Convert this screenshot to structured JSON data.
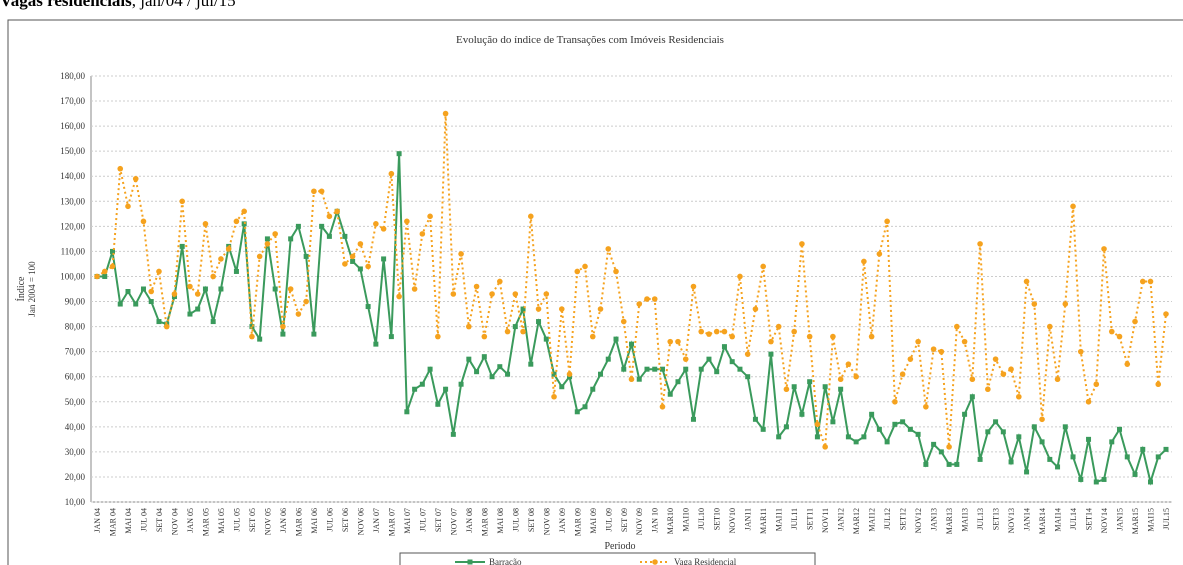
{
  "chart_data": {
    "type": "line",
    "caption_bold": "Vagas residenciais",
    "caption": ", jan/04 / jul/15",
    "title": "Evolução do índice de Transações com Imóveis Residenciais",
    "y_label": "Índice",
    "y_label_sub": "Jan 2004 = 100",
    "x_label": "Periodo",
    "categories": [
      "JAN 04",
      null,
      "MAR 04",
      null,
      "MAI 04",
      null,
      "JUL 04",
      null,
      "SET 04",
      null,
      "NOV 04",
      null,
      "JAN 05",
      null,
      "MAR 05",
      null,
      "MAI 05",
      null,
      "JUL 05",
      null,
      "SET 05",
      null,
      "NOV 05",
      null,
      "JAN 06",
      null,
      "MAR 06",
      null,
      "MAI 06",
      null,
      "JUL 06",
      null,
      "SET 06",
      null,
      "NOV 06",
      null,
      "JAN 07",
      null,
      "MAR 07",
      null,
      "MAI 07",
      null,
      "JUL 07",
      null,
      "SET 07",
      null,
      "NOV 07",
      null,
      "JAN 08",
      null,
      "MAR 08",
      null,
      "MAI 08",
      null,
      "JUL 08",
      null,
      "SET 08",
      null,
      "NOV 08",
      null,
      "JAN 09",
      null,
      "MAR 09",
      null,
      "MAI 09",
      null,
      "JUL 09",
      null,
      "SET 09",
      null,
      "NOV 09",
      null,
      "JAN 10",
      null,
      "MAR10",
      null,
      "MAI10",
      null,
      "JUL10",
      null,
      "SET10",
      null,
      "NOV10",
      null,
      "JAN11",
      null,
      "MAR11",
      null,
      "MAI11",
      null,
      "JUL11",
      null,
      "SET11",
      null,
      "NOV11",
      null,
      "JAN12",
      null,
      "MAR12",
      null,
      "MAI12",
      null,
      "JUL12",
      null,
      "SET12",
      null,
      "NOV12",
      null,
      "JAN13",
      null,
      "MAR13",
      null,
      "MAI13",
      null,
      "JUL13",
      null,
      "SET13",
      null,
      "NOV13",
      null,
      "JAN14",
      null,
      "MAR14",
      null,
      "MAI14",
      null,
      "JUL14",
      null,
      "SET14",
      null,
      "NOV14",
      null,
      "JAN15",
      null,
      "MAR15",
      null,
      "MAI15",
      null,
      "JUL15"
    ],
    "series": [
      {
        "name": "Barracão",
        "color": "#3a9a5c",
        "marker": "square",
        "dash": false,
        "values": [
          100,
          100,
          110,
          89,
          94,
          89,
          95,
          90,
          82,
          81,
          92,
          112,
          85,
          87,
          95,
          82,
          95,
          112,
          102,
          121,
          80,
          75,
          115,
          95,
          77,
          115,
          120,
          108,
          77,
          120,
          116,
          126,
          116,
          106,
          103,
          88,
          73,
          107,
          76,
          149,
          46,
          55,
          57,
          63,
          49,
          55,
          37,
          57,
          67,
          62,
          68,
          60,
          64,
          61,
          80,
          87,
          65,
          82,
          75,
          61,
          56,
          60,
          46,
          48,
          55,
          61,
          67,
          75,
          63,
          73,
          59,
          63,
          63,
          63,
          53,
          58,
          63,
          43,
          63,
          67,
          62,
          72,
          66,
          63,
          60,
          43,
          39,
          69,
          36,
          40,
          56,
          45,
          58,
          36,
          56,
          42,
          55,
          36,
          34,
          36,
          45,
          39,
          34,
          41,
          42,
          39,
          37,
          25,
          33,
          30,
          25,
          25,
          45,
          52,
          27,
          38,
          42,
          38,
          26,
          36,
          22,
          40,
          34,
          27,
          24,
          40,
          28,
          19,
          35,
          18,
          19,
          34,
          39,
          28,
          21,
          31,
          18,
          28,
          31
        ]
      },
      {
        "name": "Vaga Residencial",
        "color": "#f5a21e",
        "marker": "circle",
        "dash": true,
        "values": [
          100,
          102,
          104,
          143,
          128,
          139,
          122,
          94,
          102,
          80,
          93,
          130,
          96,
          93,
          121,
          100,
          107,
          111,
          122,
          126,
          76,
          108,
          113,
          117,
          80,
          95,
          85,
          90,
          134,
          134,
          124,
          126,
          105,
          108,
          113,
          104,
          121,
          119,
          141,
          92,
          122,
          95,
          117,
          124,
          76,
          165,
          93,
          109,
          80,
          96,
          76,
          93,
          98,
          78,
          93,
          78,
          124,
          87,
          93,
          52,
          87,
          61,
          102,
          104,
          76,
          87,
          111,
          102,
          82,
          59,
          89,
          91,
          91,
          48,
          74,
          74,
          67,
          96,
          78,
          77,
          78,
          78,
          76,
          100,
          69,
          87,
          104,
          74,
          80,
          55,
          78,
          113,
          76,
          41,
          32,
          76,
          59,
          65,
          60,
          106,
          76,
          109,
          122,
          50,
          61,
          67,
          74,
          48,
          71,
          70,
          32,
          80,
          74,
          59,
          113,
          55,
          67,
          61,
          63,
          52,
          98,
          89,
          43,
          80,
          59,
          89,
          128,
          70,
          50,
          57,
          111,
          78,
          76,
          65,
          82,
          98,
          98,
          57,
          85
        ]
      }
    ],
    "ylim": [
      10,
      180
    ],
    "yticks": [
      {
        "value": 10,
        "label": "10,00"
      },
      {
        "value": 20,
        "label": "20,00"
      },
      {
        "value": 30,
        "label": "30,00"
      },
      {
        "value": 40,
        "label": "40,00"
      },
      {
        "value": 50,
        "label": "50,00"
      },
      {
        "value": 60,
        "label": "60,00"
      },
      {
        "value": 70,
        "label": "70,00"
      },
      {
        "value": 80,
        "label": "80,00"
      },
      {
        "value": 90,
        "label": "90,00"
      },
      {
        "value": 100,
        "label": "100,00"
      },
      {
        "value": 110,
        "label": "110,00"
      },
      {
        "value": 120,
        "label": "120,00"
      },
      {
        "value": 130,
        "label": "130,00"
      },
      {
        "value": 140,
        "label": "140,00"
      },
      {
        "value": 150,
        "label": "150,00"
      },
      {
        "value": 160,
        "label": "160,00"
      },
      {
        "value": 170,
        "label": "170,00"
      },
      {
        "value": 180,
        "label": "180,00"
      }
    ],
    "grid": true
  }
}
